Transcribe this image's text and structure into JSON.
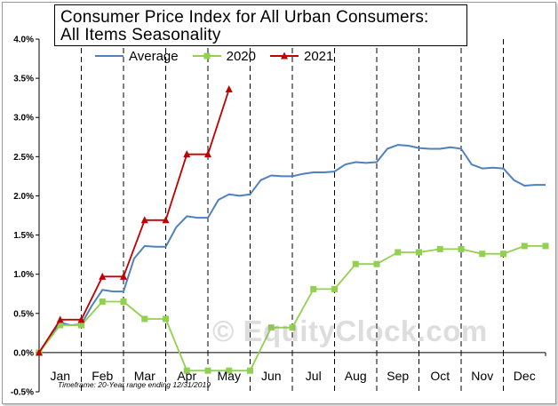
{
  "title_lines": [
    "Consumer Price Index for All Urban Consumers:",
    "All Items Seasonality"
  ],
  "watermark": "© EquityClock.com",
  "footnote": "Timeframe: 20-Year range ending 12/31/2019",
  "colors": {
    "average": "#4f81bd",
    "y2020": "#92d050",
    "y2021": "#c00000",
    "grid": "#000000"
  },
  "chart_data": {
    "type": "line",
    "title": "Consumer Price Index for All Urban Consumers: All Items Seasonality",
    "months": [
      "Jan",
      "Feb",
      "Mar",
      "Apr",
      "May",
      "Jun",
      "Jul",
      "Aug",
      "Sep",
      "Oct",
      "Nov",
      "Dec"
    ],
    "y_ticks": [
      "-0.5%",
      "0.0%",
      "0.5%",
      "1.0%",
      "1.5%",
      "2.0%",
      "2.5%",
      "3.0%",
      "3.5%",
      "4.0%"
    ],
    "ylim": [
      -0.5,
      4.0
    ],
    "xlim": [
      0,
      24
    ],
    "grid": "vertical dashed at month boundaries",
    "legend_position": "top",
    "series": [
      {
        "name": "Average",
        "marker": "none",
        "color_key": "average",
        "points": [
          [
            0,
            0.0
          ],
          [
            0.5,
            0.2
          ],
          [
            1,
            0.38
          ],
          [
            1.5,
            0.35
          ],
          [
            2,
            0.36
          ],
          [
            2.5,
            0.6
          ],
          [
            3,
            0.8
          ],
          [
            3.5,
            0.78
          ],
          [
            4,
            0.78
          ],
          [
            4.5,
            1.2
          ],
          [
            5,
            1.36
          ],
          [
            5.5,
            1.35
          ],
          [
            6,
            1.35
          ],
          [
            6.5,
            1.6
          ],
          [
            7,
            1.74
          ],
          [
            7.5,
            1.72
          ],
          [
            8,
            1.72
          ],
          [
            8.5,
            1.95
          ],
          [
            9,
            2.02
          ],
          [
            9.5,
            2.0
          ],
          [
            10,
            2.02
          ],
          [
            10.5,
            2.2
          ],
          [
            11,
            2.26
          ],
          [
            11.5,
            2.25
          ],
          [
            12,
            2.25
          ],
          [
            12.5,
            2.28
          ],
          [
            13,
            2.3
          ],
          [
            13.5,
            2.3
          ],
          [
            14,
            2.31
          ],
          [
            14.5,
            2.4
          ],
          [
            15,
            2.43
          ],
          [
            15.5,
            2.42
          ],
          [
            16,
            2.43
          ],
          [
            16.5,
            2.6
          ],
          [
            17,
            2.65
          ],
          [
            17.5,
            2.64
          ],
          [
            18,
            2.61
          ],
          [
            18.5,
            2.6
          ],
          [
            19,
            2.6
          ],
          [
            19.5,
            2.62
          ],
          [
            20,
            2.6
          ],
          [
            20.5,
            2.4
          ],
          [
            21,
            2.35
          ],
          [
            21.5,
            2.36
          ],
          [
            22,
            2.35
          ],
          [
            22.5,
            2.2
          ],
          [
            23,
            2.13
          ],
          [
            23.5,
            2.14
          ],
          [
            24,
            2.14
          ]
        ]
      },
      {
        "name": "2020",
        "marker": "square",
        "color_key": "y2020",
        "points": [
          [
            0,
            0.0
          ],
          [
            1,
            0.35
          ],
          [
            2,
            0.35
          ],
          [
            3,
            0.65
          ],
          [
            4,
            0.65
          ],
          [
            5,
            0.43
          ],
          [
            6,
            0.43
          ],
          [
            7,
            -0.23
          ],
          [
            8,
            -0.23
          ],
          [
            9,
            -0.23
          ],
          [
            10,
            -0.23
          ],
          [
            11,
            0.32
          ],
          [
            12,
            0.32
          ],
          [
            13,
            0.81
          ],
          [
            14,
            0.81
          ],
          [
            15,
            1.13
          ],
          [
            16,
            1.13
          ],
          [
            17,
            1.28
          ],
          [
            18,
            1.28
          ],
          [
            19,
            1.32
          ],
          [
            20,
            1.32
          ],
          [
            21,
            1.26
          ],
          [
            22,
            1.26
          ],
          [
            23,
            1.36
          ],
          [
            24,
            1.36
          ]
        ]
      },
      {
        "name": "2021",
        "marker": "triangle",
        "color_key": "y2021",
        "points": [
          [
            0,
            0.0
          ],
          [
            1,
            0.42
          ],
          [
            2,
            0.42
          ],
          [
            3,
            0.97
          ],
          [
            4,
            0.97
          ],
          [
            5,
            1.69
          ],
          [
            6,
            1.69
          ],
          [
            7,
            2.53
          ],
          [
            8,
            2.53
          ],
          [
            9,
            3.36
          ]
        ]
      }
    ]
  }
}
